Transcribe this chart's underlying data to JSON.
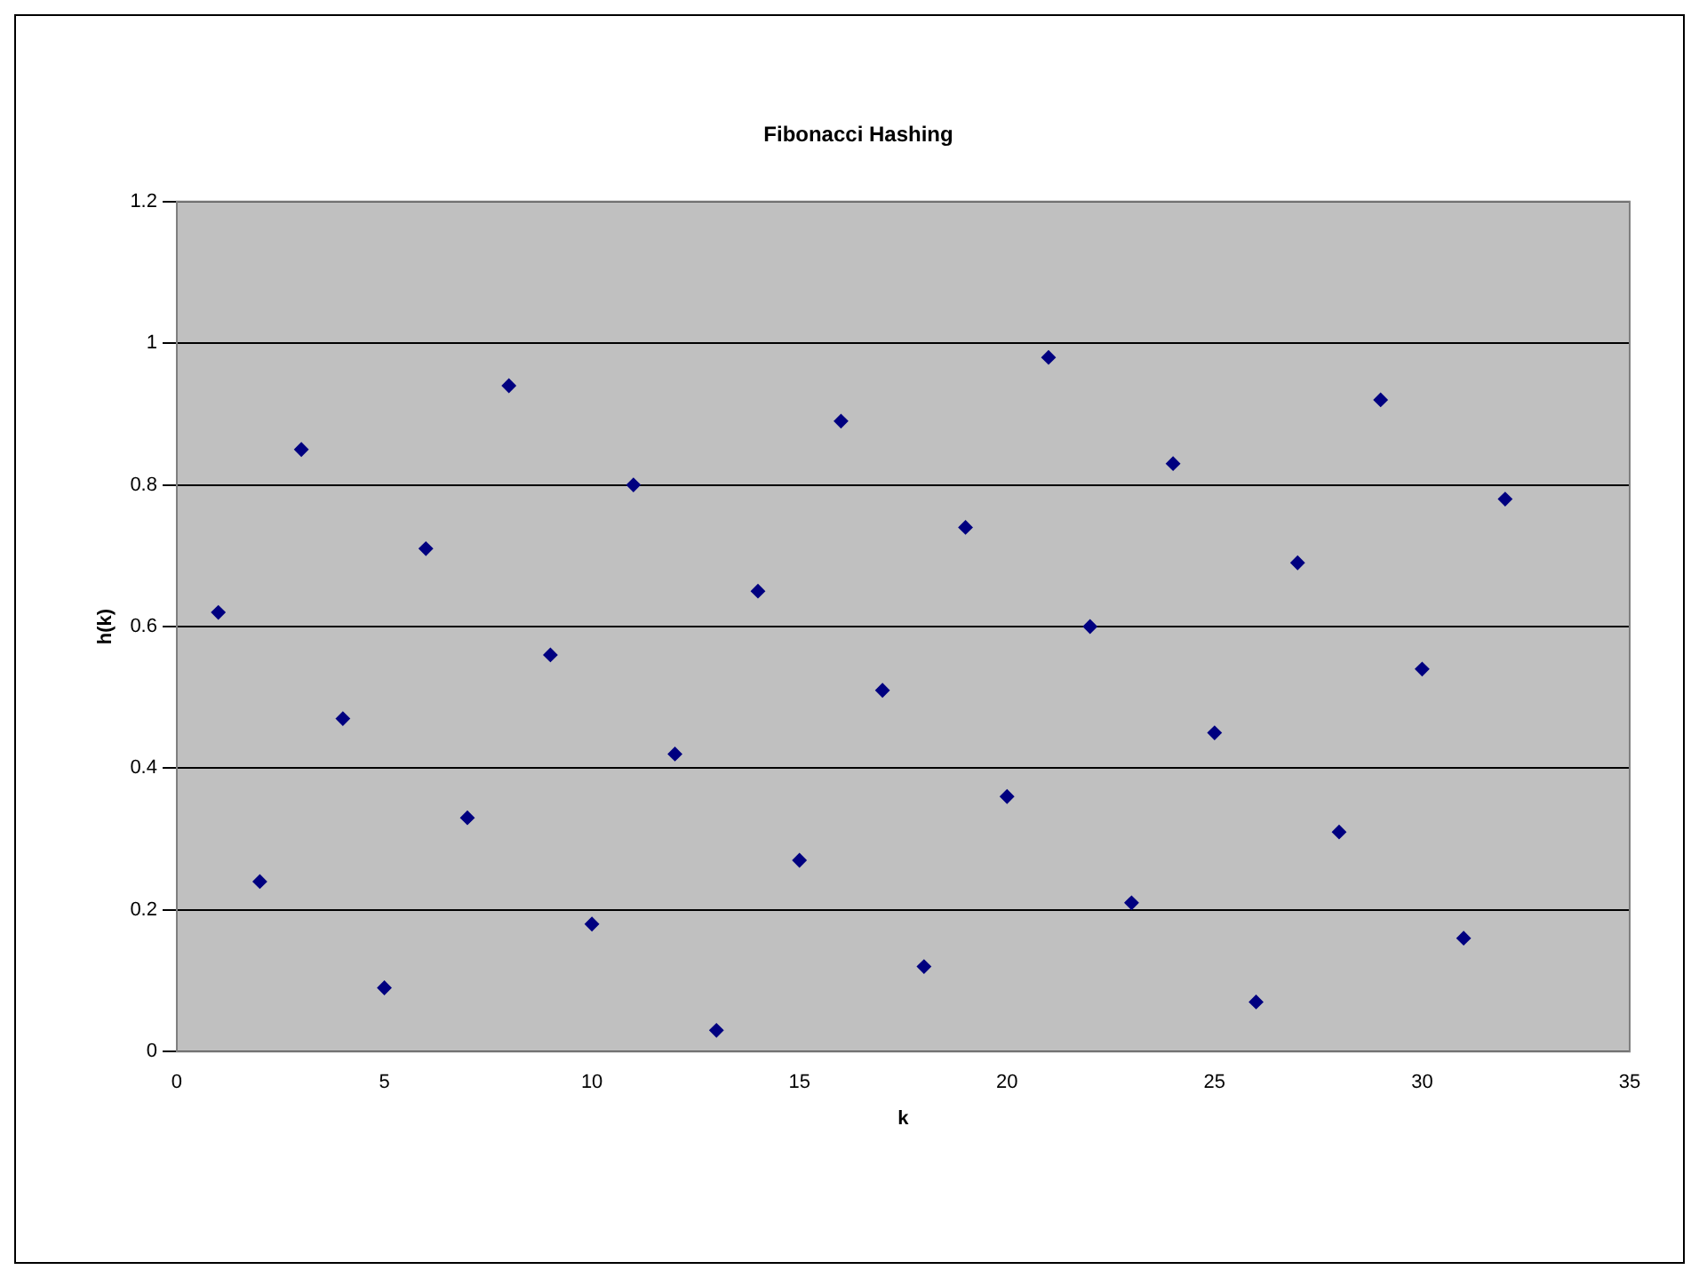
{
  "chart_data": {
    "type": "scatter",
    "title": "Fibonacci Hashing",
    "xlabel": "k",
    "ylabel": "h(k)",
    "x": [
      1,
      2,
      3,
      4,
      5,
      6,
      7,
      8,
      9,
      10,
      11,
      12,
      13,
      14,
      15,
      16,
      17,
      18,
      19,
      20,
      21,
      22,
      23,
      24,
      25,
      26,
      27,
      28,
      29,
      30,
      31,
      32
    ],
    "series": [
      {
        "color": "#000080",
        "values": [
          0.62,
          0.24,
          0.85,
          0.47,
          0.09,
          0.71,
          0.33,
          0.94,
          0.56,
          0.18,
          0.8,
          0.42,
          0.03,
          0.65,
          0.27,
          0.89,
          0.51,
          0.12,
          0.74,
          0.36,
          0.98,
          0.6,
          0.21,
          0.83,
          0.45,
          0.07,
          0.69,
          0.31,
          0.92,
          0.54,
          0.16,
          0.78
        ]
      }
    ],
    "xlim": [
      0,
      35
    ],
    "xticks": [
      0,
      5,
      10,
      15,
      20,
      25,
      30,
      35
    ],
    "ylim": [
      0,
      1.2
    ],
    "yticks": [
      0,
      0.2,
      0.4,
      0.6,
      0.8,
      1,
      1.2
    ],
    "grid": "y",
    "legend": false,
    "marker": "diamond"
  }
}
